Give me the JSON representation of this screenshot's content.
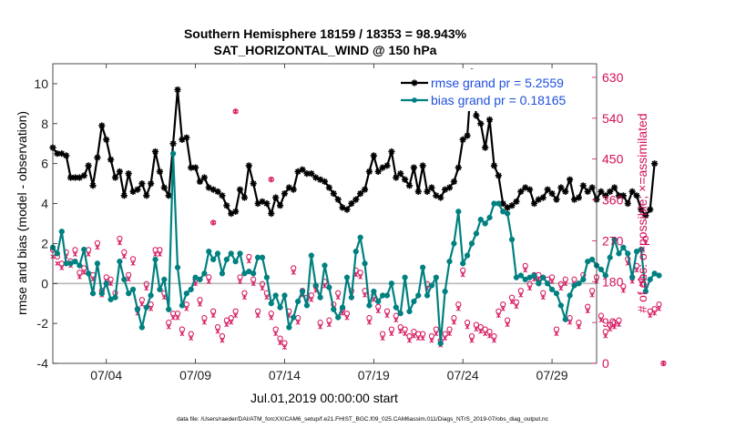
{
  "chart_data": {
    "type": "line",
    "title": "Southern Hemisphere 18159 / 18353 = 98.943%",
    "subtitle": "SAT_HORIZONTAL_WIND @ 150 hPa",
    "xlabel": "Jul.01,2019 00:00:00 start",
    "ylabel": "rmse and bias (model - observation)",
    "y2label": "# of obs: o=possible; ×=assimilated",
    "footer": "data file: /Users/raeder/DAI/ATM_forcXX/CAM6_setup/f.e21.FHIST_BGC.f09_025.CAM6assim.011/Diags_NTrS_2019-07/obs_diag_output.nc",
    "xlim": [
      1,
      31.5
    ],
    "ylim": [
      -4,
      11
    ],
    "y2lim": [
      0,
      660
    ],
    "xticks": [
      4,
      9,
      14,
      19,
      24,
      29
    ],
    "xticklabels": [
      "07/04",
      "07/09",
      "07/14",
      "07/19",
      "07/24",
      "07/29"
    ],
    "yticks": [
      -4,
      -2,
      0,
      2,
      4,
      6,
      8,
      10
    ],
    "y2ticks": [
      0,
      90,
      180,
      270,
      360,
      450,
      540,
      630
    ],
    "grid": false,
    "zero_line": 0,
    "legend_position": "top-right",
    "series": [
      {
        "name": "rmse grand pr = 5.2559",
        "color": "#000000",
        "marker": "star",
        "axis": "left",
        "x_start": 1.0,
        "x_step": 0.25,
        "values": [
          6.8,
          6.5,
          6.5,
          6.4,
          5.3,
          5.3,
          5.3,
          5.4,
          5.9,
          4.9,
          6.3,
          7.9,
          7.2,
          6.2,
          5.3,
          5.6,
          4.4,
          5.5,
          4.6,
          4.7,
          5.0,
          4.4,
          5.0,
          6.6,
          5.6,
          4.8,
          4.4,
          7.0,
          9.7,
          7.2,
          7.3,
          5.8,
          5.8,
          5.1,
          5.3,
          4.8,
          4.7,
          4.6,
          4.4,
          3.9,
          3.5,
          3.6,
          4.7,
          4.3,
          5.9,
          5.0,
          4.0,
          4.1,
          4.0,
          3.5,
          4.3,
          3.9,
          4.5,
          4.8,
          4.7,
          5.6,
          5.7,
          5.5,
          5.5,
          5.3,
          5.2,
          5.1,
          4.8,
          4.5,
          4.2,
          3.8,
          3.7,
          4.0,
          4.2,
          4.5,
          4.7,
          5.6,
          6.4,
          5.6,
          5.8,
          5.9,
          6.6,
          5.3,
          5.5,
          5.2,
          4.9,
          5.8,
          4.6,
          5.9,
          4.6,
          4.8,
          4.4,
          4.3,
          4.7,
          4.8,
          5.1,
          5.8,
          7.2,
          7.4,
          10.6,
          8.4,
          8.0,
          6.8,
          8.2,
          5.9,
          5.4,
          4.0,
          3.8,
          3.9,
          4.1,
          4.6,
          4.8,
          4.7,
          4.0,
          4.2,
          4.3,
          4.7,
          4.5,
          4.2,
          4.8,
          4.6,
          5.2,
          4.2,
          4.3,
          4.9,
          4.6,
          4.8,
          4.2,
          4.6,
          4.4,
          4.6,
          4.8,
          4.4,
          4.4,
          4.0,
          4.6,
          4.4,
          3.7,
          3.4,
          3.7,
          6.0
        ]
      },
      {
        "name": "bias grand pr = 0.18165",
        "color": "#008080",
        "marker": "circle",
        "axis": "left",
        "x_start": 1.0,
        "x_step": 0.25,
        "values": [
          1.8,
          1.5,
          2.6,
          1.0,
          1.0,
          1.1,
          0.9,
          1.7,
          0.5,
          -0.5,
          1.0,
          -0.5,
          0.0,
          -0.8,
          -0.7,
          1.1,
          0.2,
          -0.5,
          -0.3,
          -1.3,
          -2.2,
          -1.2,
          -0.6,
          1.2,
          -0.3,
          0.2,
          -1.3,
          6.5,
          0.8,
          -1.1,
          -0.5,
          -0.3,
          0.3,
          0.2,
          0.5,
          1.6,
          1.2,
          1.5,
          0.5,
          1.2,
          1.5,
          1.1,
          1.5,
          0.5,
          0.6,
          0.5,
          1.3,
          1.3,
          0.3,
          -1.0,
          -0.6,
          -1.2,
          -0.6,
          -2.2,
          -1.7,
          -0.9,
          -0.4,
          -1.1,
          1.4,
          -0.1,
          -0.7,
          0.9,
          -0.2,
          -1.3,
          -1.7,
          -1.2,
          0.3,
          -0.7,
          1.6,
          2.3,
          1.0,
          -1.1,
          -0.4,
          -0.9,
          -0.6,
          -0.6,
          0.0,
          -1.2,
          -1.5,
          0.3,
          -1.4,
          -0.9,
          -0.6,
          0.8,
          -0.6,
          -0.1,
          0.3,
          -3.0,
          -0.4,
          1.1,
          2.0,
          3.6,
          1.0,
          1.4,
          2.0,
          2.5,
          3.2,
          3.0,
          3.3,
          4.0,
          4.0,
          3.6,
          3.5,
          2.2,
          0.3,
          0.4,
          0.2,
          0.3,
          0.4,
          0.0,
          0.3,
          0.0,
          -0.3,
          -0.5,
          -1.1,
          -1.8,
          -0.6,
          -0.1,
          0.0,
          0.2,
          1.1,
          1.2,
          0.9,
          0.7,
          0.4,
          1.3,
          2.2,
          1.5,
          1.8,
          1.5,
          0.3,
          1.6,
          1.7,
          -0.4,
          0.2,
          0.5,
          0.4
        ]
      },
      {
        "name": "possible",
        "color": "#d40f5a",
        "marker": "o",
        "axis": "right",
        "x_start": 1.0,
        "x_step": 0.25,
        "values": [
          250,
          235,
          220,
          245,
          225,
          250,
          200,
          210,
          250,
          195,
          265,
          160,
          190,
          185,
          155,
          275,
          245,
          195,
          230,
          120,
          140,
          175,
          130,
          250,
          250,
          155,
          90,
          110,
          110,
          75,
          130,
          65,
          185,
          140,
          100,
          190,
          115,
          80,
          60,
          95,
          100,
          115,
          190,
          155,
          235,
          185,
          115,
          175,
          155,
          110,
          75,
          55,
          45,
          115,
          210,
          100,
          160,
          145,
          150,
          170,
          90,
          180,
          95,
          130,
          155,
          120,
          110,
          160,
          205,
          200,
          160,
          100,
          150,
          125,
          65,
          115,
          75,
          105,
          80,
          75,
          60,
          70,
          65,
          65,
          175,
          60,
          75,
          50,
          65,
          75,
          100,
          130,
          205,
          90,
          60,
          85,
          80,
          75,
          70,
          60,
          115,
          130,
          95,
          145,
          135,
          160,
          215,
          175,
          195,
          195,
          155,
          185,
          190,
          75,
          175,
          185,
          100,
          185,
          90,
          195,
          125,
          160,
          190,
          105,
          70,
          85,
          90,
          95,
          170,
          230,
          190,
          215,
          185,
          275,
          115,
          120,
          130,
          0
        ]
      },
      {
        "name": "assimilated",
        "color": "#d40f5a",
        "marker": "x",
        "axis": "right",
        "x_start": 1.0,
        "x_step": 0.25,
        "values": [
          235,
          220,
          210,
          235,
          215,
          240,
          190,
          200,
          240,
          185,
          255,
          150,
          180,
          175,
          145,
          265,
          235,
          185,
          220,
          110,
          130,
          165,
          120,
          240,
          240,
          145,
          80,
          100,
          100,
          65,
          120,
          55,
          175,
          130,
          90,
          180,
          105,
          70,
          50,
          85,
          90,
          105,
          180,
          145,
          225,
          175,
          105,
          165,
          145,
          100,
          65,
          45,
          35,
          105,
          200,
          90,
          150,
          135,
          140,
          160,
          80,
          170,
          85,
          120,
          145,
          110,
          100,
          150,
          195,
          190,
          150,
          90,
          140,
          115,
          55,
          105,
          65,
          95,
          70,
          65,
          50,
          60,
          55,
          55,
          165,
          50,
          65,
          40,
          55,
          65,
          90,
          120,
          195,
          80,
          50,
          75,
          70,
          65,
          60,
          50,
          105,
          120,
          85,
          135,
          125,
          150,
          205,
          165,
          185,
          185,
          145,
          175,
          180,
          65,
          165,
          175,
          90,
          175,
          80,
          185,
          115,
          150,
          180,
          95,
          60,
          75,
          80,
          85,
          160,
          220,
          180,
          205,
          175,
          265,
          105,
          110,
          120,
          0
        ]
      }
    ],
    "outliers": [
      {
        "x": 11.25,
        "y2": 555,
        "marker": "o"
      },
      {
        "x": 13.25,
        "y2": 405,
        "marker": "o"
      },
      {
        "x": 10.0,
        "y2": 310,
        "marker": "o"
      }
    ]
  }
}
